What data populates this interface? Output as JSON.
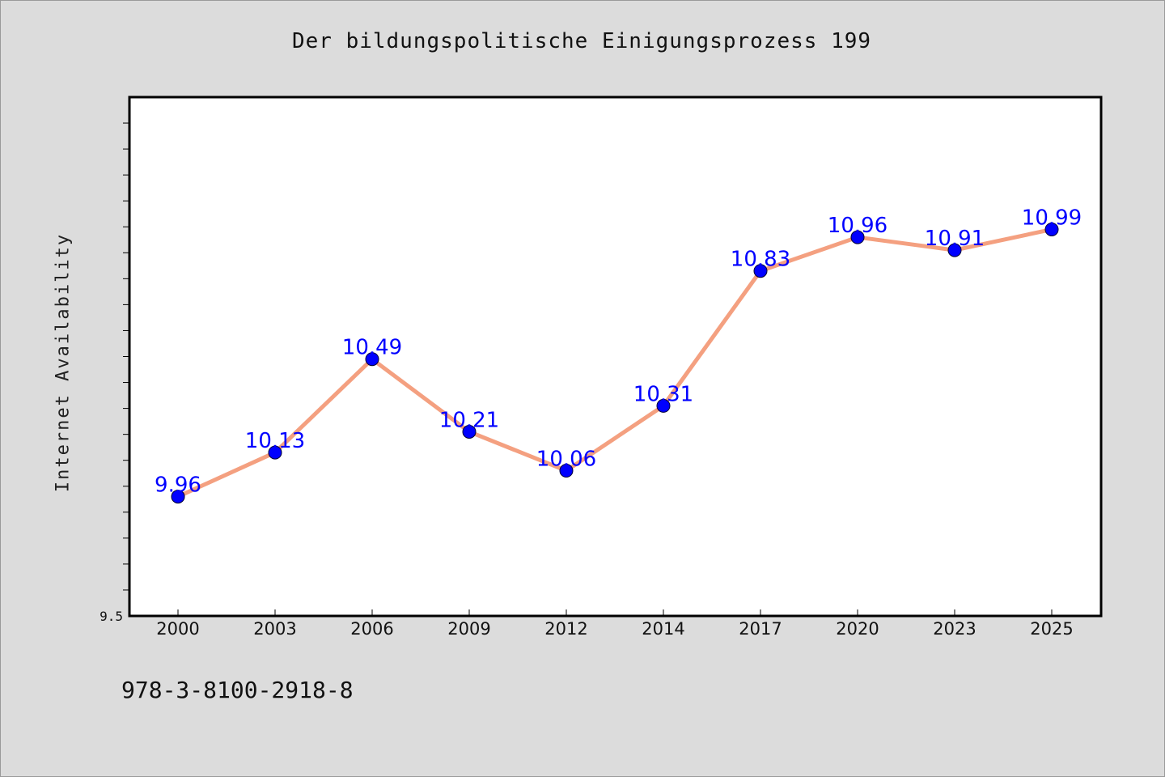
{
  "chart": {
    "title": "Der bildungspolitische Einigungsprozess 199",
    "ylabel": "Internet Availability",
    "footer_text": "978-3-8100-2918-8",
    "y_axis_labeled_ticks": [
      "9.5"
    ]
  },
  "chart_data": {
    "type": "line",
    "title": "Der bildungspolitische Einigungsprozess 199",
    "xlabel": "",
    "ylabel": "Internet Availability",
    "categories": [
      "2000",
      "2003",
      "2006",
      "2009",
      "2012",
      "2014",
      "2017",
      "2020",
      "2023",
      "2025"
    ],
    "series": [
      {
        "values": [
          9.96,
          10.13,
          10.49,
          10.21,
          10.06,
          10.31,
          10.83,
          10.96,
          10.91,
          10.99
        ],
        "data_labels": [
          "9.96",
          "10.13",
          "10.49",
          "10.21",
          "10.06",
          "10.31",
          "10.83",
          "10.96",
          "10.91",
          "10.99"
        ],
        "line_color": "#f4a080",
        "marker_color": "#0000ff"
      }
    ],
    "ylim": [
      9.5,
      11.5
    ],
    "grid": false,
    "legend": "none",
    "background_color": "#dcdcdc",
    "plot_background_color": "#ffffff"
  }
}
